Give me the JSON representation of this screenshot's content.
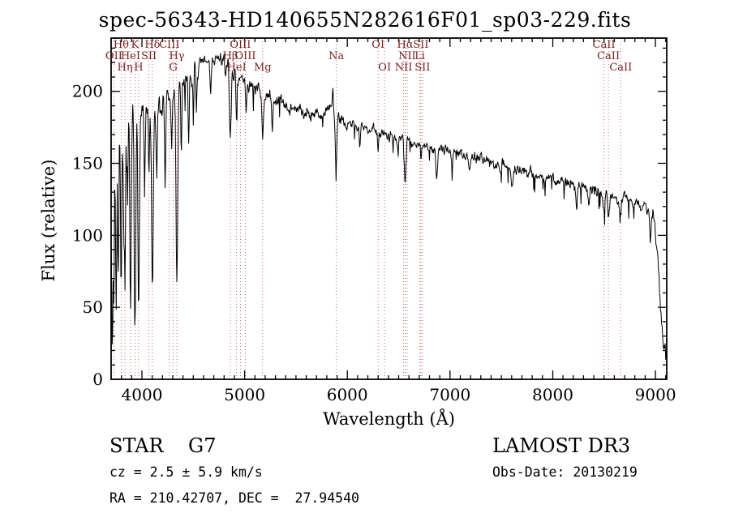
{
  "footer": {
    "class_label": "STAR    G7",
    "classification": "STAR",
    "subclass": "G7",
    "survey": "LAMOST DR3",
    "cz_line": "cz = 2.5 ± 5.9 km/s",
    "cz_value": 2.5,
    "cz_error": 5.9,
    "obs_date_line": "Obs-Date: 20130219",
    "obs_date": "20130219",
    "ra_dec_line": "RA = 210.42707, DEC =  27.94540",
    "ra": 210.42707,
    "dec": 27.9454
  },
  "chart_data": {
    "type": "line",
    "title": "spec-56343-HD140655N282616F01_sp03-229.fits",
    "xlabel": "Wavelength (Å)",
    "ylabel": "Flux (relative)",
    "xlim": [
      3700,
      9110
    ],
    "ylim": [
      0,
      237
    ],
    "x_ticks": [
      4000,
      5000,
      6000,
      7000,
      8000,
      9000
    ],
    "y_ticks": [
      0,
      50,
      100,
      150,
      200
    ],
    "x_minor_step": 100,
    "y_minor_step": 10,
    "grid": false,
    "legend": "none",
    "line_color": "#000000",
    "marker_line_color": "#b04a4a",
    "marker_label_color": "#7a1f1f",
    "spectral_lines": [
      {
        "label": "Hθ",
        "wl": 3798,
        "row": 1
      },
      {
        "label": "K",
        "wl": 3933,
        "row": 1
      },
      {
        "label": "Hδ",
        "wl": 4102,
        "row": 1
      },
      {
        "label": "CIII",
        "wl": 4267,
        "row": 1
      },
      {
        "label": "OIII",
        "wl": 4959,
        "row": 1
      },
      {
        "label": "OI",
        "wl": 6300,
        "row": 1
      },
      {
        "label": "Hα",
        "wl": 6563,
        "row": 1
      },
      {
        "label": "SII",
        "wl": 6716,
        "row": 1
      },
      {
        "label": "CaII",
        "wl": 8498,
        "row": 1
      },
      {
        "label": "OII",
        "wl": 3727,
        "row": 2
      },
      {
        "label": "HeI",
        "wl": 3889,
        "row": 2
      },
      {
        "label": "SII",
        "wl": 4068,
        "row": 2
      },
      {
        "label": "Hγ",
        "wl": 4340,
        "row": 2
      },
      {
        "label": "Hβ",
        "wl": 4861,
        "row": 2
      },
      {
        "label": "OIII",
        "wl": 5007,
        "row": 2
      },
      {
        "label": "Na",
        "wl": 5893,
        "row": 2
      },
      {
        "label": "NII",
        "wl": 6583,
        "row": 2
      },
      {
        "label": "Li",
        "wl": 6707,
        "row": 2
      },
      {
        "label": "CaII",
        "wl": 8542,
        "row": 2
      },
      {
        "label": "Hη",
        "wl": 3835,
        "row": 3
      },
      {
        "label": "H",
        "wl": 3968,
        "row": 3
      },
      {
        "label": "G",
        "wl": 4305,
        "row": 3
      },
      {
        "label": "HeI",
        "wl": 4922,
        "row": 3
      },
      {
        "label": "Mg",
        "wl": 5175,
        "row": 3
      },
      {
        "label": "OI",
        "wl": 6363,
        "row": 3
      },
      {
        "label": "NII",
        "wl": 6548,
        "row": 3
      },
      {
        "label": "SII",
        "wl": 6731,
        "row": 3
      },
      {
        "label": "CaII",
        "wl": 8662,
        "row": 3
      }
    ],
    "continuum": [
      [
        3700,
        125
      ],
      [
        3740,
        165
      ],
      [
        3780,
        180
      ],
      [
        3850,
        186
      ],
      [
        3950,
        185
      ],
      [
        4050,
        184
      ],
      [
        4150,
        188
      ],
      [
        4250,
        193
      ],
      [
        4350,
        201
      ],
      [
        4450,
        211
      ],
      [
        4550,
        217
      ],
      [
        4650,
        221
      ],
      [
        4750,
        222
      ],
      [
        4850,
        216
      ],
      [
        4950,
        209
      ],
      [
        5050,
        204
      ],
      [
        5150,
        200
      ],
      [
        5250,
        196
      ],
      [
        5350,
        192
      ],
      [
        5450,
        189
      ],
      [
        5550,
        187
      ],
      [
        5650,
        185
      ],
      [
        5750,
        184
      ],
      [
        5830,
        186
      ],
      [
        5950,
        180
      ],
      [
        6050,
        177
      ],
      [
        6150,
        175
      ],
      [
        6250,
        173
      ],
      [
        6350,
        171
      ],
      [
        6450,
        169
      ],
      [
        6550,
        167
      ],
      [
        6650,
        165
      ],
      [
        6750,
        163
      ],
      [
        6850,
        161
      ],
      [
        6950,
        159
      ],
      [
        7100,
        157
      ],
      [
        7250,
        154
      ],
      [
        7400,
        151
      ],
      [
        7550,
        148
      ],
      [
        7700,
        145
      ],
      [
        7850,
        142
      ],
      [
        8000,
        139
      ],
      [
        8150,
        136
      ],
      [
        8300,
        133
      ],
      [
        8450,
        130
      ],
      [
        8600,
        127
      ],
      [
        8750,
        124
      ],
      [
        8900,
        120
      ],
      [
        8980,
        113
      ],
      [
        9020,
        90
      ],
      [
        9050,
        50
      ],
      [
        9080,
        25
      ],
      [
        9110,
        18
      ]
    ],
    "absorption_lines": [
      [
        3712,
        110,
        6
      ],
      [
        3727,
        90,
        5
      ],
      [
        3750,
        120,
        6
      ],
      [
        3771,
        100,
        5
      ],
      [
        3798,
        125,
        6
      ],
      [
        3820,
        70,
        5
      ],
      [
        3835,
        128,
        6
      ],
      [
        3860,
        60,
        5
      ],
      [
        3889,
        138,
        7
      ],
      [
        3933,
        148,
        7
      ],
      [
        3968,
        142,
        7
      ],
      [
        4026,
        55,
        5
      ],
      [
        4068,
        45,
        5
      ],
      [
        4102,
        132,
        8
      ],
      [
        4144,
        45,
        5
      ],
      [
        4226,
        62,
        5
      ],
      [
        4290,
        40,
        5
      ],
      [
        4340,
        130,
        8
      ],
      [
        4383,
        55,
        5
      ],
      [
        4455,
        45,
        5
      ],
      [
        4501,
        40,
        4
      ],
      [
        4531,
        30,
        5
      ],
      [
        4668,
        25,
        5
      ],
      [
        4861,
        50,
        8
      ],
      [
        4920,
        25,
        5
      ],
      [
        5015,
        20,
        5
      ],
      [
        5175,
        32,
        8
      ],
      [
        5270,
        22,
        6
      ],
      [
        5858,
        -22,
        4
      ],
      [
        5890,
        35,
        7
      ],
      [
        6122,
        15,
        5
      ],
      [
        6300,
        12,
        5
      ],
      [
        6495,
        15,
        5
      ],
      [
        6563,
        28,
        7
      ],
      [
        6717,
        12,
        5
      ],
      [
        6870,
        22,
        9
      ],
      [
        7020,
        12,
        6
      ],
      [
        7190,
        12,
        8
      ],
      [
        7605,
        12,
        9
      ],
      [
        8230,
        15,
        8
      ],
      [
        8350,
        12,
        6
      ],
      [
        8498,
        10,
        6
      ],
      [
        8542,
        13,
        6
      ],
      [
        8662,
        14,
        6
      ],
      [
        8950,
        18,
        8
      ]
    ],
    "noise": {
      "seed": 7,
      "sigma": [
        [
          3700,
          13
        ],
        [
          3900,
          10
        ],
        [
          4200,
          8
        ],
        [
          4600,
          6
        ],
        [
          5000,
          5
        ],
        [
          5500,
          4.5
        ],
        [
          6000,
          4
        ],
        [
          6500,
          3.5
        ],
        [
          7000,
          3.5
        ],
        [
          7600,
          3.8
        ],
        [
          8200,
          4
        ],
        [
          8800,
          4.5
        ],
        [
          9100,
          5
        ]
      ]
    },
    "sample_step_angstrom": 5
  }
}
